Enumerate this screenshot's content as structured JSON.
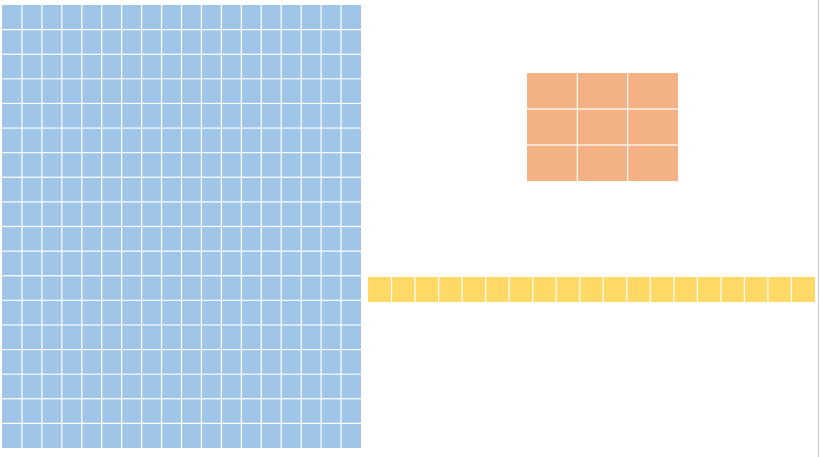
{
  "grids": [
    {
      "rows": 18,
      "cols": 18,
      "color": "#9fc5e8"
    },
    {
      "rows": 3,
      "cols": 3,
      "color": "#f4b183"
    },
    {
      "rows": 1,
      "cols": 19,
      "color": "#ffd966"
    }
  ]
}
